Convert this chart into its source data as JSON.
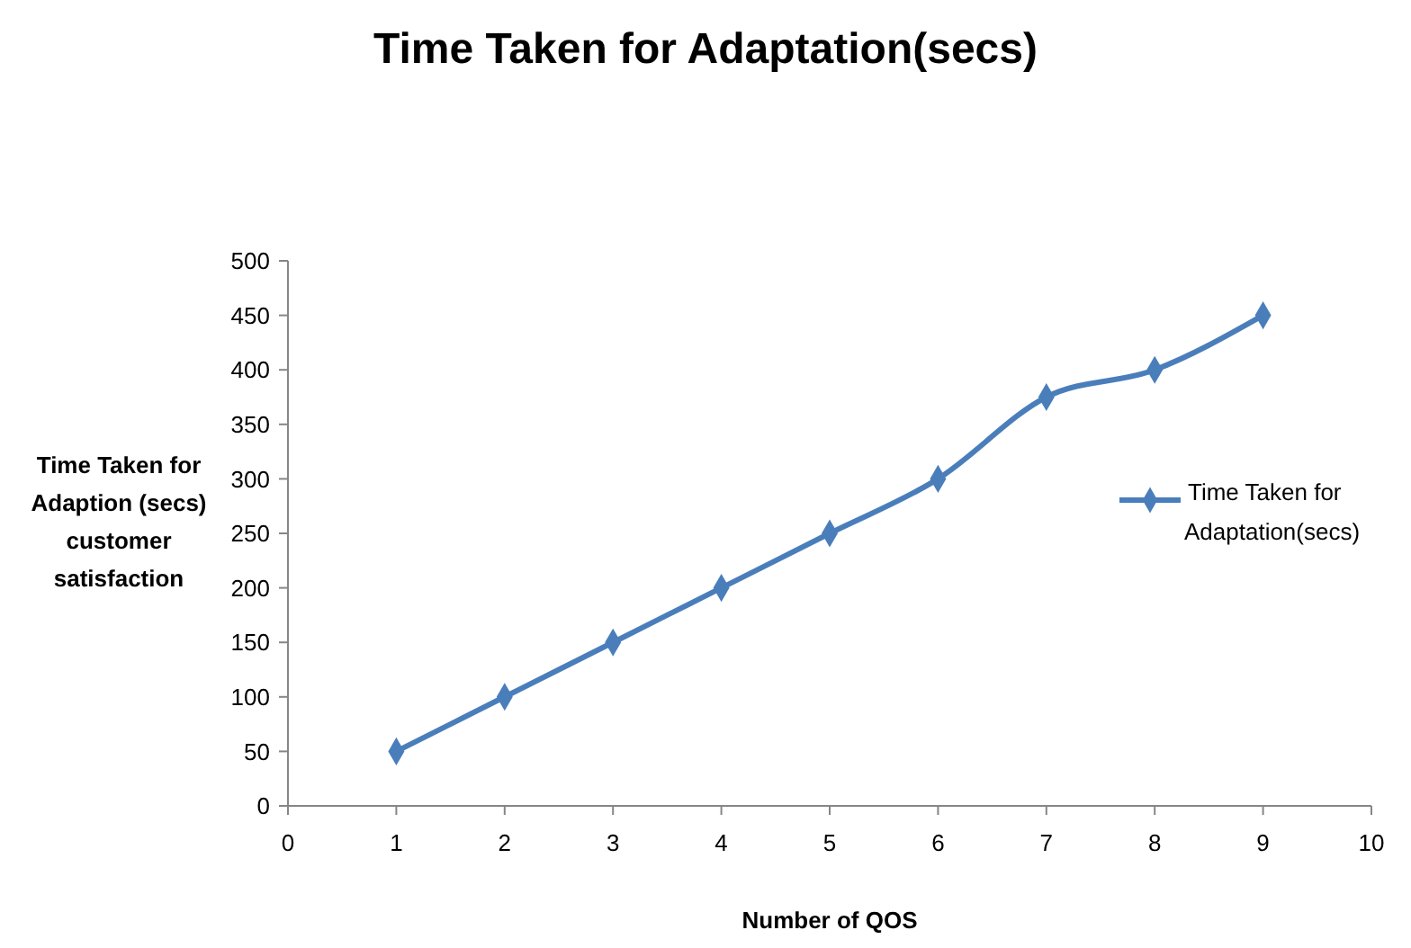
{
  "chart_data": {
    "type": "line",
    "title": "Time Taken for Adaptation(secs)",
    "xlabel": "Number of QOS",
    "ylabel": "Time Taken for\nAdaption (secs)\ncustomer\nsatisfaction",
    "x": [
      1,
      2,
      3,
      4,
      5,
      6,
      7,
      8,
      9
    ],
    "series": [
      {
        "name": "Time Taken for Adaptation(secs)",
        "color": "#4a7ebb",
        "values": [
          50,
          100,
          150,
          200,
          250,
          300,
          375,
          400,
          450
        ]
      }
    ],
    "xlim": [
      0,
      10
    ],
    "xticks": [
      0,
      1,
      2,
      3,
      4,
      5,
      6,
      7,
      8,
      9,
      10
    ],
    "ylim": [
      0,
      500
    ],
    "yticks": [
      0,
      50,
      100,
      150,
      200,
      250,
      300,
      350,
      400,
      450,
      500
    ],
    "grid": false,
    "legend": "right",
    "marker": "diamond",
    "line_style": "solid"
  }
}
